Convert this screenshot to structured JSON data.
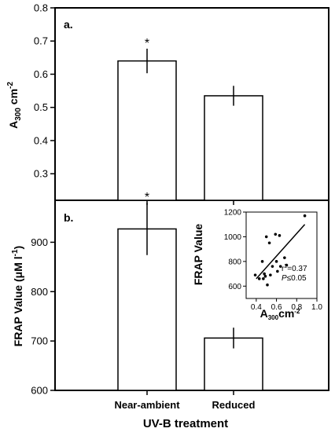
{
  "chart_data": [
    {
      "panel": "a.",
      "type": "bar",
      "categories": [
        "Near-ambient",
        "Reduced"
      ],
      "values": [
        0.64,
        0.535
      ],
      "errors": [
        0.037,
        0.03
      ],
      "annotations": [
        "*",
        ""
      ],
      "ylabel": "A",
      "ylabel_sub": "300",
      "ylabel_suffix": " cm",
      "ylabel_sup": "-2",
      "ylim": [
        0.22,
        0.8
      ],
      "yticks": [
        "0.3",
        "0.4",
        "0.5",
        "0.6",
        "0.7",
        "0.8"
      ]
    },
    {
      "panel": "b.",
      "type": "bar",
      "categories": [
        "Near-ambient",
        "Reduced"
      ],
      "values": [
        927,
        706
      ],
      "errors": [
        53,
        21
      ],
      "annotations": [
        "*",
        ""
      ],
      "ylabel": "FRAP Value (μM l",
      "ylabel_sup": "-1",
      "ylabel_suffix": ")",
      "ylim": [
        600,
        985
      ],
      "yticks": [
        "600",
        "700",
        "800",
        "900"
      ],
      "xlabel": "UV-B treatment"
    },
    {
      "panel": "inset",
      "type": "scatter",
      "x": [
        0.39,
        0.43,
        0.46,
        0.47,
        0.48,
        0.49,
        0.5,
        0.51,
        0.53,
        0.54,
        0.56,
        0.59,
        0.6,
        0.61,
        0.63,
        0.64,
        0.68,
        0.7,
        0.88
      ],
      "y": [
        690,
        660,
        800,
        660,
        700,
        680,
        1000,
        610,
        950,
        690,
        760,
        1020,
        800,
        720,
        1010,
        760,
        830,
        770,
        1170
      ],
      "fit_line": [
        [
          0.4,
          660
        ],
        [
          0.88,
          1100
        ]
      ],
      "xlabel": "A",
      "xlabel_sub": "300",
      "xlabel_suffix": "cm",
      "xlabel_sup": "-2",
      "ylabel": "FRAP Value",
      "xlim": [
        0.3,
        1.0
      ],
      "ylim": [
        500,
        1200
      ],
      "xticks": [
        "0.4",
        "0.6",
        "0.8",
        "1.0"
      ],
      "yticks": [
        "600",
        "800",
        "1000",
        "1200"
      ],
      "r2_label": "r",
      "r2_sup": "2",
      "r2_value": "=0.37",
      "p_label": "P",
      "p_value": "≤0.05"
    }
  ]
}
